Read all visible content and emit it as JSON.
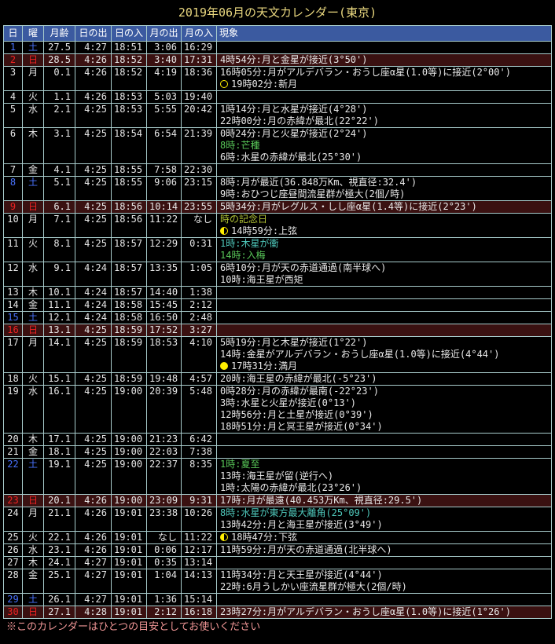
{
  "title": "2019年06月の天文カレンダー(東京)",
  "footnote": "※このカレンダーはひとつの目安としてお使いください",
  "colors": {
    "background": "#000000",
    "title": "#e9d77f",
    "header_bg": "#3b5aa0",
    "header_text": "#ffffff",
    "border": "#a8cccc",
    "text": "#e8e8e8",
    "sunday_bg": "#3a1111",
    "sunday_text": "#ee2222",
    "saturday_text": "#4973ff",
    "green": "#58c758",
    "cyan": "#4fc9bc",
    "memorial": "#b2c435",
    "moon": "#ffee00",
    "footer": "#f09696"
  },
  "table": {
    "headers": [
      "日",
      "曜",
      "月齢",
      "日の出",
      "日の入",
      "月の出",
      "月の入",
      "現象"
    ],
    "rows": [
      {
        "day": "1",
        "weekday": "土",
        "type": "sat",
        "moon_age": "27.5",
        "sunrise": "4:27",
        "sunset": "18:51",
        "moonrise": "3:06",
        "moonset": "16:29",
        "events": []
      },
      {
        "day": "2",
        "weekday": "日",
        "type": "sun",
        "moon_age": "28.5",
        "sunrise": "4:26",
        "sunset": "18:52",
        "moonrise": "3:40",
        "moonset": "17:31",
        "events": [
          {
            "style": "normal",
            "text": "4時54分:月と金星が接近(3°50')"
          }
        ]
      },
      {
        "day": "3",
        "weekday": "月",
        "type": "weekday",
        "moon_age": "0.1",
        "sunrise": "4:26",
        "sunset": "18:52",
        "moonrise": "4:19",
        "moonset": "18:36",
        "events": [
          {
            "style": "normal",
            "text": "16時05分:月がアルデバラン・おうし座α星(1.0等)に接近(2°00')"
          },
          {
            "style": "normal",
            "icon": "new-moon",
            "text": "19時02分:新月"
          }
        ]
      },
      {
        "day": "4",
        "weekday": "火",
        "type": "weekday",
        "moon_age": "1.1",
        "sunrise": "4:26",
        "sunset": "18:53",
        "moonrise": "5:03",
        "moonset": "19:40",
        "events": []
      },
      {
        "day": "5",
        "weekday": "水",
        "type": "weekday",
        "moon_age": "2.1",
        "sunrise": "4:25",
        "sunset": "18:53",
        "moonrise": "5:55",
        "moonset": "20:42",
        "events": [
          {
            "style": "normal",
            "text": "1時14分:月と水星が接近(4°28')"
          },
          {
            "style": "normal",
            "text": "22時00分:月の赤緯が最北(22°22')"
          }
        ]
      },
      {
        "day": "6",
        "weekday": "木",
        "type": "weekday",
        "moon_age": "3.1",
        "sunrise": "4:25",
        "sunset": "18:54",
        "moonrise": "6:54",
        "moonset": "21:39",
        "events": [
          {
            "style": "normal",
            "text": "0時24分:月と火星が接近(2°24')"
          },
          {
            "style": "season",
            "text": "8時:芒種"
          },
          {
            "style": "normal",
            "text": "6時:水星の赤緯が最北(25°30')"
          }
        ]
      },
      {
        "day": "7",
        "weekday": "金",
        "type": "weekday",
        "moon_age": "4.1",
        "sunrise": "4:25",
        "sunset": "18:55",
        "moonrise": "7:58",
        "moonset": "22:30",
        "events": []
      },
      {
        "day": "8",
        "weekday": "土",
        "type": "sat",
        "moon_age": "5.1",
        "sunrise": "4:25",
        "sunset": "18:55",
        "moonrise": "9:06",
        "moonset": "23:15",
        "events": [
          {
            "style": "normal",
            "text": "8時:月が最近(36.848万Km、視直径:32.4')"
          },
          {
            "style": "normal",
            "text": "9時:おひつじ座昼間流星群が極大(2個/時)"
          }
        ]
      },
      {
        "day": "9",
        "weekday": "日",
        "type": "sun",
        "moon_age": "6.1",
        "sunrise": "4:25",
        "sunset": "18:56",
        "moonrise": "10:14",
        "moonset": "23:55",
        "events": [
          {
            "style": "normal",
            "text": "5時34分:月がレグルス・しし座α星(1.4等)に接近(2°23')"
          }
        ]
      },
      {
        "day": "10",
        "weekday": "月",
        "type": "weekday",
        "moon_age": "7.1",
        "sunrise": "4:25",
        "sunset": "18:56",
        "moonrise": "11:22",
        "moonset": "なし",
        "events": [
          {
            "style": "memorial",
            "text": "時の記念日"
          },
          {
            "style": "normal",
            "icon": "first-quarter",
            "text": "14時59分:上弦"
          }
        ]
      },
      {
        "day": "11",
        "weekday": "火",
        "type": "weekday",
        "moon_age": "8.1",
        "sunrise": "4:25",
        "sunset": "18:57",
        "moonrise": "12:29",
        "moonset": "0:31",
        "events": [
          {
            "style": "planet",
            "text": "1時:木星が衝"
          },
          {
            "style": "season",
            "text": "14時:入梅"
          }
        ]
      },
      {
        "day": "12",
        "weekday": "水",
        "type": "weekday",
        "moon_age": "9.1",
        "sunrise": "4:24",
        "sunset": "18:57",
        "moonrise": "13:35",
        "moonset": "1:05",
        "events": [
          {
            "style": "normal",
            "text": "6時10分:月が天の赤道通過(南半球へ)"
          },
          {
            "style": "normal",
            "text": "10時:海王星が西矩"
          }
        ]
      },
      {
        "day": "13",
        "weekday": "木",
        "type": "weekday",
        "moon_age": "10.1",
        "sunrise": "4:24",
        "sunset": "18:57",
        "moonrise": "14:40",
        "moonset": "1:38",
        "events": []
      },
      {
        "day": "14",
        "weekday": "金",
        "type": "weekday",
        "moon_age": "11.1",
        "sunrise": "4:24",
        "sunset": "18:58",
        "moonrise": "15:45",
        "moonset": "2:12",
        "events": []
      },
      {
        "day": "15",
        "weekday": "土",
        "type": "sat",
        "moon_age": "12.1",
        "sunrise": "4:24",
        "sunset": "18:58",
        "moonrise": "16:50",
        "moonset": "2:48",
        "events": []
      },
      {
        "day": "16",
        "weekday": "日",
        "type": "sun",
        "moon_age": "13.1",
        "sunrise": "4:25",
        "sunset": "18:59",
        "moonrise": "17:52",
        "moonset": "3:27",
        "events": []
      },
      {
        "day": "17",
        "weekday": "月",
        "type": "weekday",
        "moon_age": "14.1",
        "sunrise": "4:25",
        "sunset": "18:59",
        "moonrise": "18:53",
        "moonset": "4:10",
        "events": [
          {
            "style": "normal",
            "text": "5時19分:月と木星が接近(1°22')"
          },
          {
            "style": "normal",
            "text": "14時:金星がアルデバラン・おうし座α星(1.0等)に接近(4°44')"
          },
          {
            "style": "normal",
            "icon": "full-moon",
            "text": "17時31分:満月"
          }
        ]
      },
      {
        "day": "18",
        "weekday": "火",
        "type": "weekday",
        "moon_age": "15.1",
        "sunrise": "4:25",
        "sunset": "18:59",
        "moonrise": "19:48",
        "moonset": "4:57",
        "events": [
          {
            "style": "normal",
            "text": "20時:海王星の赤緯が最北(-5°23')"
          }
        ]
      },
      {
        "day": "19",
        "weekday": "水",
        "type": "weekday",
        "moon_age": "16.1",
        "sunrise": "4:25",
        "sunset": "19:00",
        "moonrise": "20:39",
        "moonset": "5:48",
        "events": [
          {
            "style": "normal",
            "text": "0時28分:月の赤緯が最南(-22°23')"
          },
          {
            "style": "normal",
            "text": "3時:水星と火星が接近(0°13')"
          },
          {
            "style": "normal",
            "text": "12時56分:月と土星が接近(0°39')"
          },
          {
            "style": "normal",
            "text": "18時51分:月と冥王星が接近(0°34')"
          }
        ]
      },
      {
        "day": "20",
        "weekday": "木",
        "type": "weekday",
        "moon_age": "17.1",
        "sunrise": "4:25",
        "sunset": "19:00",
        "moonrise": "21:23",
        "moonset": "6:42",
        "events": []
      },
      {
        "day": "21",
        "weekday": "金",
        "type": "weekday",
        "moon_age": "18.1",
        "sunrise": "4:25",
        "sunset": "19:00",
        "moonrise": "22:03",
        "moonset": "7:38",
        "events": []
      },
      {
        "day": "22",
        "weekday": "土",
        "type": "sat",
        "moon_age": "19.1",
        "sunrise": "4:25",
        "sunset": "19:00",
        "moonrise": "22:37",
        "moonset": "8:35",
        "events": [
          {
            "style": "season",
            "text": "1時:夏至"
          },
          {
            "style": "normal",
            "text": "13時:海王星が留(逆行へ)"
          },
          {
            "style": "normal",
            "text": "1時:太陽の赤緯が最北(23°26')"
          }
        ]
      },
      {
        "day": "23",
        "weekday": "日",
        "type": "sun",
        "moon_age": "20.1",
        "sunrise": "4:26",
        "sunset": "19:00",
        "moonrise": "23:09",
        "moonset": "9:31",
        "events": [
          {
            "style": "normal",
            "text": "17時:月が最遠(40.453万Km、視直径:29.5')"
          }
        ]
      },
      {
        "day": "24",
        "weekday": "月",
        "type": "weekday",
        "moon_age": "21.1",
        "sunrise": "4:26",
        "sunset": "19:01",
        "moonrise": "23:38",
        "moonset": "10:26",
        "events": [
          {
            "style": "planet",
            "text": "8時:水星が東方最大離角(25°09')"
          },
          {
            "style": "normal",
            "text": "13時42分:月と海王星が接近(3°49')"
          }
        ]
      },
      {
        "day": "25",
        "weekday": "火",
        "type": "weekday",
        "moon_age": "22.1",
        "sunrise": "4:26",
        "sunset": "19:01",
        "moonrise": "なし",
        "moonset": "11:22",
        "events": [
          {
            "style": "normal",
            "icon": "last-quarter",
            "text": "18時47分:下弦"
          }
        ]
      },
      {
        "day": "26",
        "weekday": "水",
        "type": "weekday",
        "moon_age": "23.1",
        "sunrise": "4:26",
        "sunset": "19:01",
        "moonrise": "0:06",
        "moonset": "12:17",
        "events": [
          {
            "style": "normal",
            "text": "11時59分:月が天の赤道通過(北半球へ)"
          }
        ]
      },
      {
        "day": "27",
        "weekday": "木",
        "type": "weekday",
        "moon_age": "24.1",
        "sunrise": "4:27",
        "sunset": "19:01",
        "moonrise": "0:35",
        "moonset": "13:14",
        "events": []
      },
      {
        "day": "28",
        "weekday": "金",
        "type": "weekday",
        "moon_age": "25.1",
        "sunrise": "4:27",
        "sunset": "19:01",
        "moonrise": "1:04",
        "moonset": "14:13",
        "events": [
          {
            "style": "normal",
            "text": "11時34分:月と天王星が接近(4°44')"
          },
          {
            "style": "normal",
            "text": "22時:6月うしかい座流星群が極大(2個/時)"
          }
        ]
      },
      {
        "day": "29",
        "weekday": "土",
        "type": "sat",
        "moon_age": "26.1",
        "sunrise": "4:27",
        "sunset": "19:01",
        "moonrise": "1:36",
        "moonset": "15:14",
        "events": []
      },
      {
        "day": "30",
        "weekday": "日",
        "type": "sun",
        "moon_age": "27.1",
        "sunrise": "4:28",
        "sunset": "19:01",
        "moonrise": "2:12",
        "moonset": "16:18",
        "events": [
          {
            "style": "normal",
            "text": "23時27分:月がアルデバラン・おうし座α星(1.0等)に接近(1°26')"
          }
        ]
      }
    ]
  }
}
